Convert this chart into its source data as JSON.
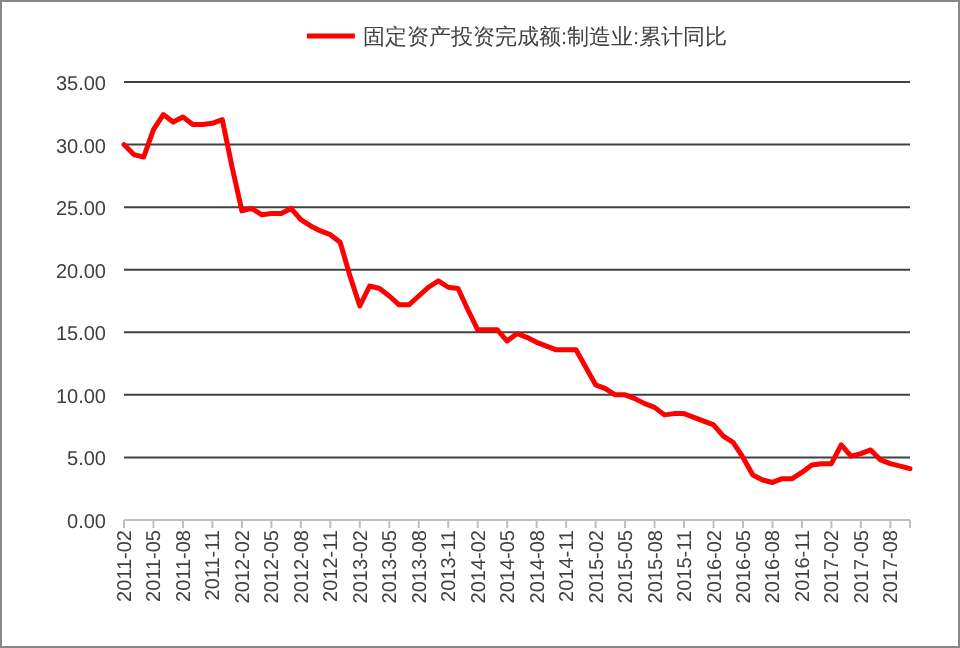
{
  "chart_data": {
    "type": "line",
    "categories": [
      "2011-02",
      null,
      null,
      "2011-05",
      null,
      null,
      "2011-08",
      null,
      null,
      "2011-11",
      null,
      null,
      "2012-02",
      null,
      null,
      "2012-05",
      null,
      null,
      "2012-08",
      null,
      null,
      "2012-11",
      null,
      null,
      "2013-02",
      null,
      null,
      "2013-05",
      null,
      null,
      "2013-08",
      null,
      null,
      "2013-11",
      null,
      null,
      "2014-02",
      null,
      null,
      "2014-05",
      null,
      null,
      "2014-08",
      null,
      null,
      "2014-11",
      null,
      null,
      "2015-02",
      null,
      null,
      "2015-05",
      null,
      null,
      "2015-08",
      null,
      null,
      "2015-11",
      null,
      null,
      "2016-02",
      null,
      null,
      "2016-05",
      null,
      null,
      "2016-08",
      null,
      null,
      "2016-11",
      null,
      null,
      "2017-02",
      null,
      null,
      "2017-05",
      null,
      null,
      "2017-08",
      null,
      null
    ],
    "series": [
      {
        "name": "固定资产投资完成额:制造业:累计同比",
        "color": "#ff0000",
        "values": [
          30.0,
          29.2,
          29.0,
          31.2,
          32.4,
          31.8,
          32.2,
          31.6,
          31.6,
          31.7,
          32.0,
          28.2,
          24.7,
          24.9,
          24.4,
          24.5,
          24.5,
          24.9,
          24.0,
          23.5,
          23.1,
          22.8,
          22.2,
          19.5,
          17.1,
          18.7,
          18.5,
          17.9,
          17.2,
          17.2,
          17.9,
          18.6,
          19.1,
          18.6,
          18.5,
          16.8,
          15.2,
          15.2,
          15.2,
          14.3,
          14.9,
          14.6,
          14.2,
          13.9,
          13.6,
          13.6,
          13.6,
          12.2,
          10.8,
          10.5,
          10.0,
          10.0,
          9.7,
          9.3,
          9.0,
          8.4,
          8.5,
          8.5,
          8.2,
          7.9,
          7.6,
          6.7,
          6.2,
          5.0,
          3.6,
          3.2,
          3.0,
          3.3,
          3.3,
          3.8,
          4.4,
          4.5,
          4.5,
          6.0,
          5.1,
          5.3,
          5.6,
          4.8,
          4.5,
          4.3,
          4.1
        ]
      }
    ],
    "ylim": [
      0,
      35
    ],
    "yticks": [
      {
        "value": 0,
        "label": "0.00"
      },
      {
        "value": 5,
        "label": "5.00"
      },
      {
        "value": 10,
        "label": "10.00"
      },
      {
        "value": 15,
        "label": "15.00"
      },
      {
        "value": 20,
        "label": "20.00"
      },
      {
        "value": 25,
        "label": "25.00"
      },
      {
        "value": 30,
        "label": "30.00"
      },
      {
        "value": 35,
        "label": "35.00"
      }
    ],
    "grid": "y",
    "legend": "top"
  }
}
